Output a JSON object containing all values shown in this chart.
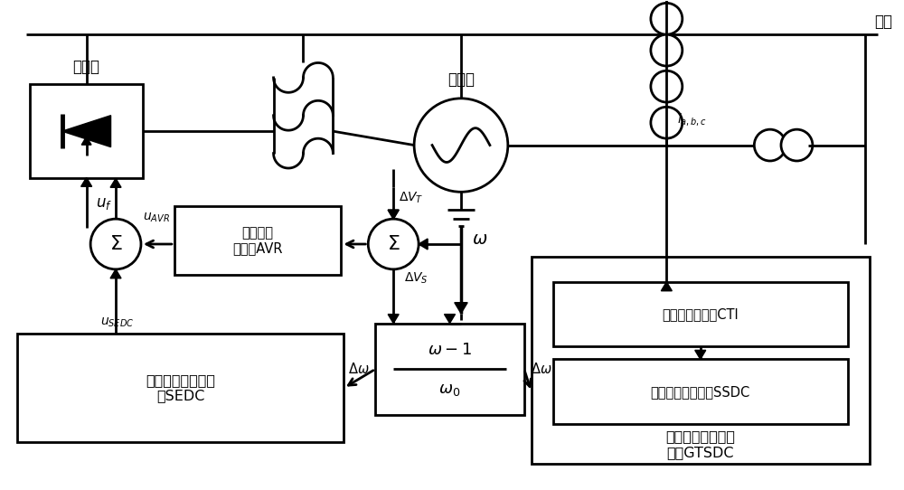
{
  "fig_w": 10.0,
  "fig_h": 5.42,
  "dpi": 100,
  "lw": 2.0,
  "bg": "#ffffff",
  "labels": {
    "inverter": "逆变器",
    "generator": "发电机",
    "main_grid": "主网",
    "avr": "自动电压\n调整器AVR",
    "sedc": "附加励磁阱尼控制\n器SEDC",
    "gtsdc": "机端次同步阱尼控\n制器GTSDC",
    "cti": "电流跟踪逆变器CTI",
    "ssdc": "次同步阱尼控制器SSDC"
  }
}
